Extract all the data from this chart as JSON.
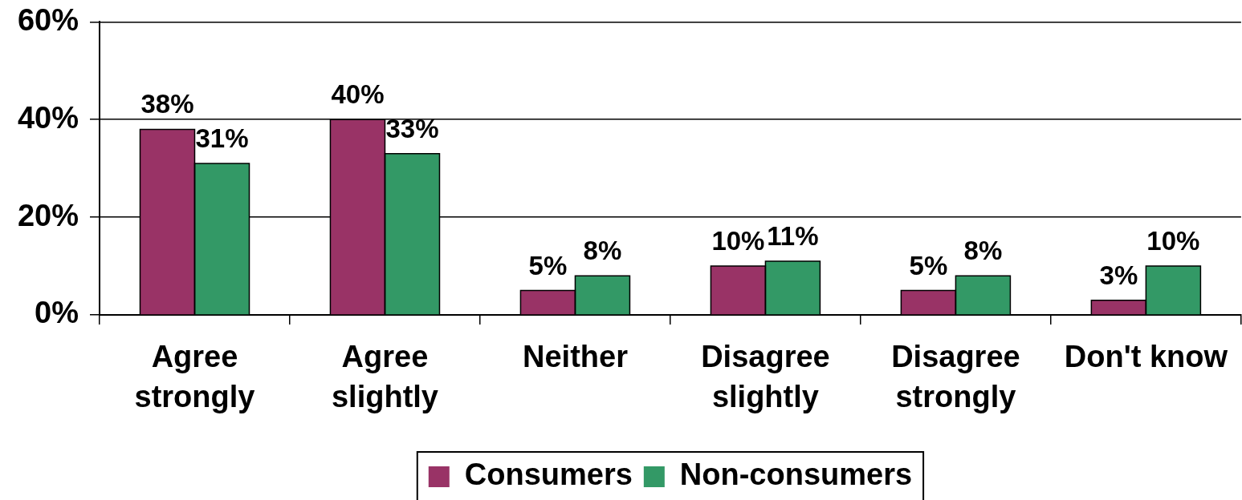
{
  "chart_data": {
    "type": "bar",
    "categories": [
      "Agree strongly",
      "Agree slightly",
      "Neither",
      "Disagree slightly",
      "Disagree strongly",
      "Don't know"
    ],
    "series": [
      {
        "name": "Consumers",
        "color": "#993366",
        "values": [
          38,
          40,
          5,
          10,
          5,
          3
        ],
        "value_labels": [
          "38%",
          "40%",
          "5%",
          "10%",
          "5%",
          "3%"
        ]
      },
      {
        "name": "Non-consumers",
        "color": "#339966",
        "values": [
          31,
          33,
          8,
          11,
          8,
          10
        ],
        "value_labels": [
          "31%",
          "33%",
          "8%",
          "11%",
          "8%",
          "10%"
        ]
      }
    ],
    "ylim": [
      0,
      60
    ],
    "yticks": [
      {
        "value": 0,
        "label": "0%"
      },
      {
        "value": 20,
        "label": "20%"
      },
      {
        "value": 40,
        "label": "40%"
      },
      {
        "value": 60,
        "label": "60%"
      }
    ],
    "grid": "y",
    "legend": "bottom"
  }
}
